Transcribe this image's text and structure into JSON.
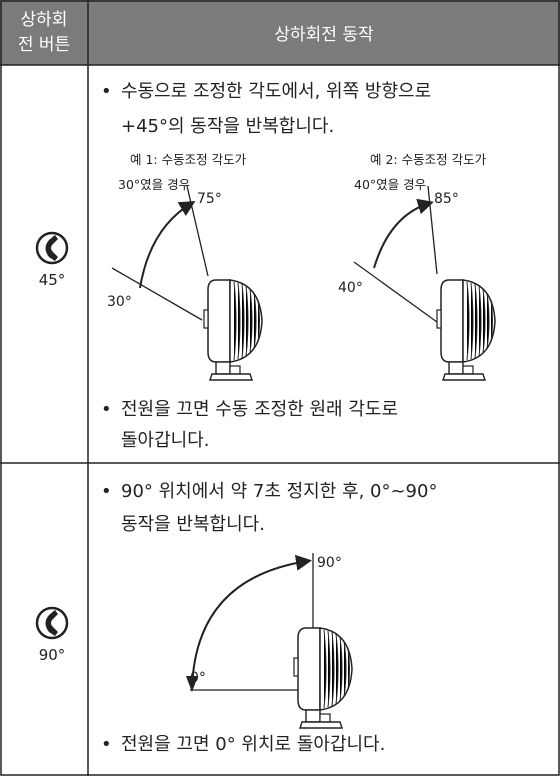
{
  "header": {
    "col1": [
      "상하회",
      "전 버튼"
    ],
    "col2": "상하회전 동작"
  },
  "rows": [
    {
      "button": "45°",
      "bullets": [
        [
          "수동으로 조정한 각도에서, 위쪽 방향으로",
          "+45°의 동작을 반복합니다."
        ],
        [
          "전원을 끄면 수동 조정한 원래 각도로",
          "돌아갑니다."
        ]
      ],
      "examples": [
        {
          "lines": [
            "예 1: 수동조정 각도가",
            "30°였을 경우"
          ],
          "from": "30°",
          "to": "75°"
        },
        {
          "lines": [
            "예 2: 수동조정 각도가",
            "40°였을 경우"
          ],
          "from": "40°",
          "to": "85°"
        }
      ]
    },
    {
      "button": "90°",
      "bullets": [
        [
          "90° 위치에서 약 7초 정지한 후, 0°~90°",
          "동작을 반복합니다."
        ],
        [
          "전원을 끄면 0° 위치로 돌아갑니다."
        ]
      ],
      "diagram": {
        "from": "0°",
        "to": "90°"
      }
    }
  ]
}
